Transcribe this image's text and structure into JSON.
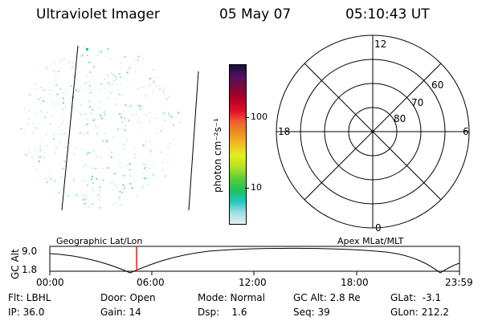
{
  "header": {
    "instrument": "Ultraviolet Imager",
    "date": "05 May 07",
    "time": "05:10:43 UT"
  },
  "colorbar": {
    "unit_label": "photon cm⁻²s⁻¹",
    "ticks": [
      "100",
      "10"
    ],
    "colors": [
      "#10103a",
      "#501060",
      "#7a0a40",
      "#b00020",
      "#e0102a",
      "#f06030",
      "#f09020",
      "#f0c020",
      "#e0f020",
      "#b8e020",
      "#60d030",
      "#20c060",
      "#20c8c0",
      "#a0e0e0",
      "#e0f0f0"
    ]
  },
  "polar_plot": {
    "mlt_labels": {
      "top": "12",
      "right": "6",
      "bottom": "0",
      "left": "18"
    },
    "lat_labels": [
      "60",
      "70",
      "80"
    ]
  },
  "timeline": {
    "ylabel": "GC Alt",
    "left_title": "Geographic Lat/Lon",
    "right_title": "Apex MLat/MLT",
    "y_ticks": [
      "9.0",
      "1.8"
    ],
    "x_ticks": [
      "00:00",
      "06:00",
      "12:00",
      "18:00",
      "23:59"
    ]
  },
  "info": {
    "filter": "Flt: LBHL",
    "door": "Door: Open",
    "mode": "Mode: Normal",
    "gc_alt": "GC Alt: 2.8 Re",
    "glat": "GLat:  -3.1",
    "ip": "IP: 36.0",
    "gain": "Gain: 14",
    "dsp": "Dsp:    1.6",
    "seq": "Seq: 39",
    "glon": "GLon: 212.2"
  },
  "colors": {
    "speckle": "#a8dcdc",
    "marker": "#e02020"
  }
}
